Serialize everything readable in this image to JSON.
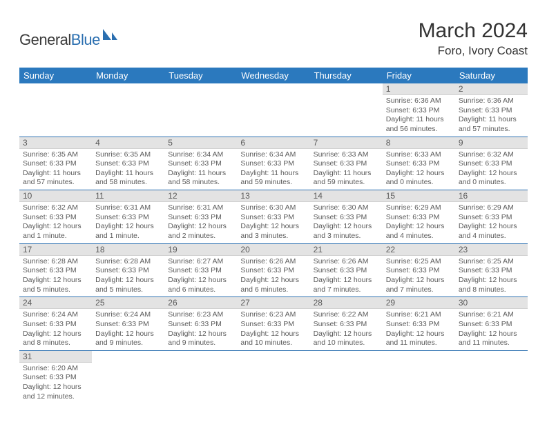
{
  "logo": {
    "text_general": "General",
    "text_blue": "Blue"
  },
  "title": "March 2024",
  "location": "Foro, Ivory Coast",
  "colors": {
    "header_bg": "#2b79be",
    "header_text": "#ffffff",
    "daybar_bg": "#e3e3e3",
    "border": "#2b6fb0",
    "body_text": "#5a5a5a"
  },
  "weekdays": [
    "Sunday",
    "Monday",
    "Tuesday",
    "Wednesday",
    "Thursday",
    "Friday",
    "Saturday"
  ],
  "weeks": [
    [
      {
        "n": "",
        "sr": "",
        "ss": "",
        "dl": ""
      },
      {
        "n": "",
        "sr": "",
        "ss": "",
        "dl": ""
      },
      {
        "n": "",
        "sr": "",
        "ss": "",
        "dl": ""
      },
      {
        "n": "",
        "sr": "",
        "ss": "",
        "dl": ""
      },
      {
        "n": "",
        "sr": "",
        "ss": "",
        "dl": ""
      },
      {
        "n": "1",
        "sr": "Sunrise: 6:36 AM",
        "ss": "Sunset: 6:33 PM",
        "dl": "Daylight: 11 hours and 56 minutes."
      },
      {
        "n": "2",
        "sr": "Sunrise: 6:36 AM",
        "ss": "Sunset: 6:33 PM",
        "dl": "Daylight: 11 hours and 57 minutes."
      }
    ],
    [
      {
        "n": "3",
        "sr": "Sunrise: 6:35 AM",
        "ss": "Sunset: 6:33 PM",
        "dl": "Daylight: 11 hours and 57 minutes."
      },
      {
        "n": "4",
        "sr": "Sunrise: 6:35 AM",
        "ss": "Sunset: 6:33 PM",
        "dl": "Daylight: 11 hours and 58 minutes."
      },
      {
        "n": "5",
        "sr": "Sunrise: 6:34 AM",
        "ss": "Sunset: 6:33 PM",
        "dl": "Daylight: 11 hours and 58 minutes."
      },
      {
        "n": "6",
        "sr": "Sunrise: 6:34 AM",
        "ss": "Sunset: 6:33 PM",
        "dl": "Daylight: 11 hours and 59 minutes."
      },
      {
        "n": "7",
        "sr": "Sunrise: 6:33 AM",
        "ss": "Sunset: 6:33 PM",
        "dl": "Daylight: 11 hours and 59 minutes."
      },
      {
        "n": "8",
        "sr": "Sunrise: 6:33 AM",
        "ss": "Sunset: 6:33 PM",
        "dl": "Daylight: 12 hours and 0 minutes."
      },
      {
        "n": "9",
        "sr": "Sunrise: 6:32 AM",
        "ss": "Sunset: 6:33 PM",
        "dl": "Daylight: 12 hours and 0 minutes."
      }
    ],
    [
      {
        "n": "10",
        "sr": "Sunrise: 6:32 AM",
        "ss": "Sunset: 6:33 PM",
        "dl": "Daylight: 12 hours and 1 minute."
      },
      {
        "n": "11",
        "sr": "Sunrise: 6:31 AM",
        "ss": "Sunset: 6:33 PM",
        "dl": "Daylight: 12 hours and 1 minute."
      },
      {
        "n": "12",
        "sr": "Sunrise: 6:31 AM",
        "ss": "Sunset: 6:33 PM",
        "dl": "Daylight: 12 hours and 2 minutes."
      },
      {
        "n": "13",
        "sr": "Sunrise: 6:30 AM",
        "ss": "Sunset: 6:33 PM",
        "dl": "Daylight: 12 hours and 3 minutes."
      },
      {
        "n": "14",
        "sr": "Sunrise: 6:30 AM",
        "ss": "Sunset: 6:33 PM",
        "dl": "Daylight: 12 hours and 3 minutes."
      },
      {
        "n": "15",
        "sr": "Sunrise: 6:29 AM",
        "ss": "Sunset: 6:33 PM",
        "dl": "Daylight: 12 hours and 4 minutes."
      },
      {
        "n": "16",
        "sr": "Sunrise: 6:29 AM",
        "ss": "Sunset: 6:33 PM",
        "dl": "Daylight: 12 hours and 4 minutes."
      }
    ],
    [
      {
        "n": "17",
        "sr": "Sunrise: 6:28 AM",
        "ss": "Sunset: 6:33 PM",
        "dl": "Daylight: 12 hours and 5 minutes."
      },
      {
        "n": "18",
        "sr": "Sunrise: 6:28 AM",
        "ss": "Sunset: 6:33 PM",
        "dl": "Daylight: 12 hours and 5 minutes."
      },
      {
        "n": "19",
        "sr": "Sunrise: 6:27 AM",
        "ss": "Sunset: 6:33 PM",
        "dl": "Daylight: 12 hours and 6 minutes."
      },
      {
        "n": "20",
        "sr": "Sunrise: 6:26 AM",
        "ss": "Sunset: 6:33 PM",
        "dl": "Daylight: 12 hours and 6 minutes."
      },
      {
        "n": "21",
        "sr": "Sunrise: 6:26 AM",
        "ss": "Sunset: 6:33 PM",
        "dl": "Daylight: 12 hours and 7 minutes."
      },
      {
        "n": "22",
        "sr": "Sunrise: 6:25 AM",
        "ss": "Sunset: 6:33 PM",
        "dl": "Daylight: 12 hours and 7 minutes."
      },
      {
        "n": "23",
        "sr": "Sunrise: 6:25 AM",
        "ss": "Sunset: 6:33 PM",
        "dl": "Daylight: 12 hours and 8 minutes."
      }
    ],
    [
      {
        "n": "24",
        "sr": "Sunrise: 6:24 AM",
        "ss": "Sunset: 6:33 PM",
        "dl": "Daylight: 12 hours and 8 minutes."
      },
      {
        "n": "25",
        "sr": "Sunrise: 6:24 AM",
        "ss": "Sunset: 6:33 PM",
        "dl": "Daylight: 12 hours and 9 minutes."
      },
      {
        "n": "26",
        "sr": "Sunrise: 6:23 AM",
        "ss": "Sunset: 6:33 PM",
        "dl": "Daylight: 12 hours and 9 minutes."
      },
      {
        "n": "27",
        "sr": "Sunrise: 6:23 AM",
        "ss": "Sunset: 6:33 PM",
        "dl": "Daylight: 12 hours and 10 minutes."
      },
      {
        "n": "28",
        "sr": "Sunrise: 6:22 AM",
        "ss": "Sunset: 6:33 PM",
        "dl": "Daylight: 12 hours and 10 minutes."
      },
      {
        "n": "29",
        "sr": "Sunrise: 6:21 AM",
        "ss": "Sunset: 6:33 PM",
        "dl": "Daylight: 12 hours and 11 minutes."
      },
      {
        "n": "30",
        "sr": "Sunrise: 6:21 AM",
        "ss": "Sunset: 6:33 PM",
        "dl": "Daylight: 12 hours and 11 minutes."
      }
    ],
    [
      {
        "n": "31",
        "sr": "Sunrise: 6:20 AM",
        "ss": "Sunset: 6:33 PM",
        "dl": "Daylight: 12 hours and 12 minutes."
      },
      {
        "n": "",
        "sr": "",
        "ss": "",
        "dl": ""
      },
      {
        "n": "",
        "sr": "",
        "ss": "",
        "dl": ""
      },
      {
        "n": "",
        "sr": "",
        "ss": "",
        "dl": ""
      },
      {
        "n": "",
        "sr": "",
        "ss": "",
        "dl": ""
      },
      {
        "n": "",
        "sr": "",
        "ss": "",
        "dl": ""
      },
      {
        "n": "",
        "sr": "",
        "ss": "",
        "dl": ""
      }
    ]
  ]
}
